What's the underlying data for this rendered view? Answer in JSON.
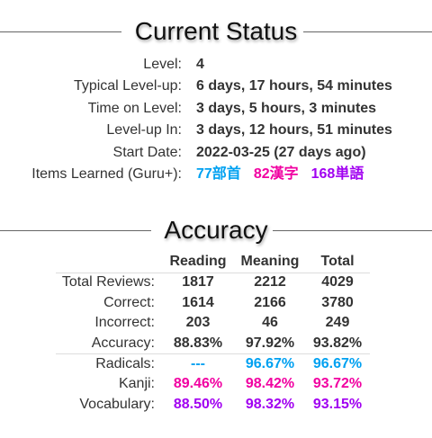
{
  "status": {
    "heading": "Current Status",
    "rows": [
      {
        "label": "Level:",
        "value": "4"
      },
      {
        "label": "Typical Level-up:",
        "value": "6 days, 17 hours, 54 minutes"
      },
      {
        "label": "Time on Level:",
        "value": "3 days, 5 hours, 3 minutes"
      },
      {
        "label": "Level-up In:",
        "value": "3 days, 12 hours, 51 minutes"
      },
      {
        "label": "Start Date:",
        "value": "2022-03-25 (27 days ago)"
      }
    ],
    "items_learned": {
      "label": "Items Learned (Guru+):",
      "radicals": "77部首",
      "kanji": "82漢字",
      "vocabulary": "168単語"
    }
  },
  "accuracy": {
    "heading": "Accuracy",
    "columns": [
      "Reading",
      "Meaning",
      "Total"
    ],
    "rows": [
      {
        "label": "Total Reviews:",
        "values": [
          "1817",
          "2212",
          "4029"
        ]
      },
      {
        "label": "Correct:",
        "values": [
          "1614",
          "2166",
          "3780"
        ]
      },
      {
        "label": "Incorrect:",
        "values": [
          "203",
          "46",
          "249"
        ]
      },
      {
        "label": "Accuracy:",
        "values": [
          "88.83%",
          "97.92%",
          "93.82%"
        ]
      },
      {
        "label": "Radicals:",
        "values": [
          "---",
          "96.67%",
          "96.67%"
        ]
      },
      {
        "label": "Kanji:",
        "values": [
          "89.46%",
          "98.42%",
          "93.72%"
        ]
      },
      {
        "label": "Vocabulary:",
        "values": [
          "88.50%",
          "98.32%",
          "93.15%"
        ]
      }
    ]
  },
  "colors": {
    "radical": "#00a1f1",
    "kanji": "#f100a1",
    "vocabulary": "#a100f1",
    "text": "#333333"
  }
}
